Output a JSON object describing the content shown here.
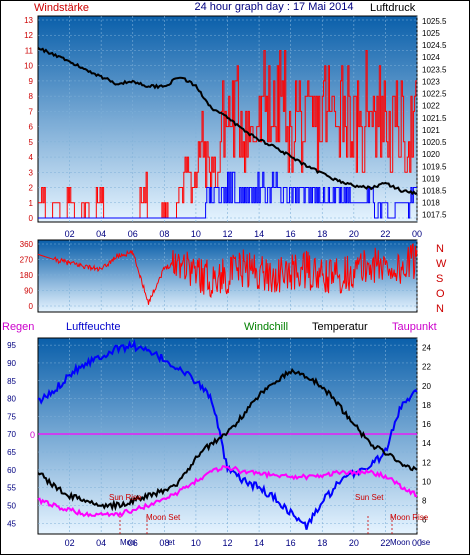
{
  "header": {
    "left_label": "Windstärke",
    "title": "24 hour graph day : 17 Mai 2014",
    "right_label": "Luftdruck"
  },
  "colors": {
    "panel_top": "#0a5faa",
    "panel_bottom": "#e6f4ff",
    "wind": "#ff0000",
    "gust_blue": "#0000ff",
    "pressure": "#000000",
    "direction": "#ff0000",
    "humidity": "#0000ff",
    "windchill": "#008000",
    "temperature": "#000000",
    "dewpoint": "#ff00ff",
    "label_red": "#cc0000",
    "axis_blue": "#000080"
  },
  "chart_data": [
    {
      "type": "bar",
      "panel": "wind-pressure",
      "x_tick_labels": [
        "02",
        "04",
        "06",
        "08",
        "10",
        "12",
        "14",
        "16",
        "18",
        "20",
        "22",
        "00"
      ],
      "left_axis": {
        "label": "Windstärke",
        "ticks": [
          "0",
          "1",
          "2",
          "3",
          "4",
          "5",
          "6",
          "7",
          "8",
          "9",
          "10",
          "11",
          "12",
          "13"
        ],
        "ylim": [
          0,
          13
        ]
      },
      "right_axis": {
        "label": "Luftdruck",
        "ticks": [
          "1017.5",
          "1018",
          "1018.5",
          "1019",
          "1019.5",
          "1020",
          "1020.5",
          "1021",
          "1021.5",
          "1022",
          "1022.5",
          "1023",
          "1023.5",
          "1024",
          "1024.5",
          "1025",
          "1025.5"
        ],
        "ylim": [
          1017.2,
          1025.7
        ]
      },
      "pressure_hourly": [
        1024.4,
        1024.1,
        1023.8,
        1023.5,
        1023.2,
        1022.9,
        1023.0,
        1022.8,
        1022.8,
        1023.2,
        1022.8,
        1021.9,
        1021.5,
        1021.0,
        1020.6,
        1020.3,
        1019.9,
        1019.5,
        1019.2,
        1018.9,
        1018.7,
        1018.6,
        1018.8,
        1018.5,
        1018.4
      ],
      "wind_series": [
        {
          "name": "Windstärke",
          "hourly_max": [
            2,
            0,
            1,
            0,
            2,
            0,
            1,
            0,
            2,
            0,
            0,
            0,
            0,
            0,
            3,
            0,
            0,
            1,
            0,
            2,
            6,
            3,
            7,
            5,
            5,
            9,
            10,
            10,
            9,
            8,
            9,
            12,
            10,
            12,
            7,
            10,
            8,
            9,
            9,
            11,
            10,
            12,
            11,
            9,
            7,
            13,
            11,
            10,
            8,
            9,
            8,
            9
          ]
        },
        {
          "name": "Böen",
          "hourly_max": [
            0,
            0,
            0,
            0,
            0,
            0,
            0,
            0,
            0,
            0,
            0,
            0,
            0,
            0,
            0,
            0,
            0,
            0,
            0,
            0,
            0,
            0,
            0,
            2,
            2,
            2,
            3,
            2,
            2,
            2,
            3,
            2,
            3,
            2,
            2,
            2,
            3,
            2,
            2,
            2,
            2,
            3,
            2,
            2,
            2,
            2,
            1,
            1,
            0,
            1,
            1,
            2
          ]
        }
      ]
    },
    {
      "type": "line",
      "panel": "wind-direction",
      "left_axis": {
        "ticks": [
          "0",
          "90",
          "180",
          "270",
          "360"
        ],
        "ylim": [
          0,
          360
        ]
      },
      "compass_labels": [
        "N",
        "W",
        "S",
        "O",
        "N"
      ],
      "series": [
        {
          "name": "Windrichtung",
          "hourly": [
            300,
            270,
            250,
            230,
            210,
            290,
            310,
            20,
            220,
            270,
            200,
            150,
            180,
            220,
            200,
            170,
            190,
            210,
            160,
            180,
            200,
            240,
            230,
            210,
            280
          ]
        }
      ]
    },
    {
      "type": "line",
      "panel": "temperature-humidity",
      "x_tick_labels": [
        "02",
        "04",
        "06",
        "08",
        "10",
        "12",
        "14",
        "16",
        "18",
        "20",
        "22",
        "00"
      ],
      "left_axis": {
        "label": "Regen",
        "ticks": [
          "45",
          "50",
          "55",
          "60",
          "65",
          "70",
          "75",
          "80",
          "85",
          "90",
          "95"
        ],
        "ylim": [
          42,
          97
        ]
      },
      "right_axis": {
        "ticks": [
          "6",
          "8",
          "10",
          "12",
          "14",
          "16",
          "18",
          "20",
          "22",
          "24"
        ],
        "ylim": [
          4.5,
          25
        ]
      },
      "legend": [
        "Regen",
        "Luftfeuchte",
        "Windchill",
        "Temperatur",
        "Taupunkt"
      ],
      "rain_marker": "0",
      "series": [
        {
          "name": "Luftfeuchte",
          "axis": "left",
          "hourly": [
            79,
            82,
            87,
            90,
            92,
            94,
            95,
            93,
            91,
            88,
            85,
            80,
            60,
            57,
            55,
            52,
            48,
            44,
            51,
            56,
            59,
            61,
            65,
            78,
            83,
            91
          ]
        },
        {
          "name": "Temperatur",
          "axis": "right",
          "hourly": [
            11,
            9.5,
            8.5,
            8,
            7.5,
            7.5,
            8,
            8.5,
            9,
            10,
            12.5,
            14,
            15,
            17,
            19,
            20.5,
            21.5,
            21,
            20,
            18,
            16,
            14,
            13,
            12,
            11
          ]
        },
        {
          "name": "Taupunkt",
          "axis": "right",
          "hourly": [
            8,
            7.5,
            7,
            6.5,
            6.5,
            6.5,
            7,
            7.5,
            8,
            9,
            10,
            11,
            11.5,
            11,
            11,
            10.5,
            10.5,
            10.5,
            10.5,
            11,
            11,
            11,
            10.5,
            9.5,
            8.5
          ]
        }
      ],
      "annotations": [
        {
          "label": "Sun Rise",
          "x_label": "05"
        },
        {
          "label": "Moon Set",
          "x_label": "06"
        },
        {
          "label": "Sun Set",
          "x_label": "21"
        },
        {
          "label": "Moon Rise",
          "x_label": "23"
        }
      ]
    }
  ],
  "bottom_labels": {
    "moon_set_short": "Moo",
    "moon_set_tail": "et",
    "moon_rise_short": "Moon",
    "moon_rise_tail": "ise"
  }
}
